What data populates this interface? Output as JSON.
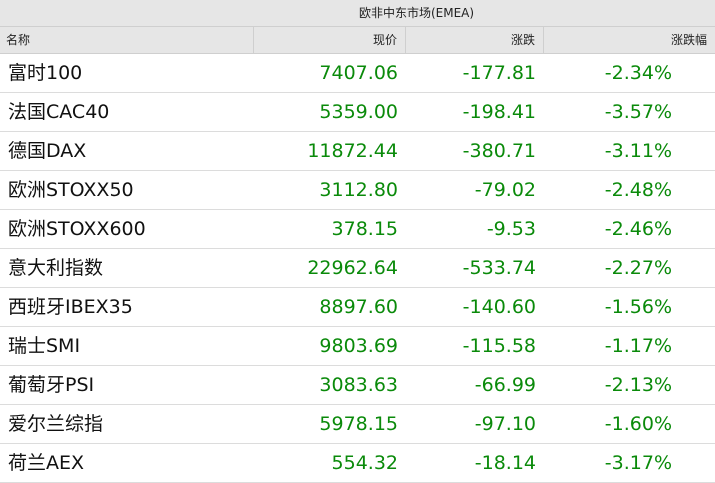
{
  "title": "欧非中东市场(EMEA)",
  "headers": {
    "name": "名称",
    "price": "现价",
    "change": "涨跌",
    "pct": "涨跌幅"
  },
  "colors": {
    "down": "#0a8a0a",
    "header_bg": "#e6e6e6"
  },
  "rows": [
    {
      "name": "富时100",
      "price": "7407.06",
      "change": "-177.81",
      "pct": "-2.34%"
    },
    {
      "name": "法国CAC40",
      "price": "5359.00",
      "change": "-198.41",
      "pct": "-3.57%"
    },
    {
      "name": "德国DAX",
      "price": "11872.44",
      "change": "-380.71",
      "pct": "-3.11%"
    },
    {
      "name": "欧洲STOXX50",
      "price": "3112.80",
      "change": "-79.02",
      "pct": "-2.48%"
    },
    {
      "name": "欧洲STOXX600",
      "price": "378.15",
      "change": "-9.53",
      "pct": "-2.46%"
    },
    {
      "name": "意大利指数",
      "price": "22962.64",
      "change": "-533.74",
      "pct": "-2.27%"
    },
    {
      "name": "西班牙IBEX35",
      "price": "8897.60",
      "change": "-140.60",
      "pct": "-1.56%"
    },
    {
      "name": "瑞士SMI",
      "price": "9803.69",
      "change": "-115.58",
      "pct": "-1.17%"
    },
    {
      "name": "葡萄牙PSI",
      "price": "3083.63",
      "change": "-66.99",
      "pct": "-2.13%"
    },
    {
      "name": "爱尔兰综指",
      "price": "5978.15",
      "change": "-97.10",
      "pct": "-1.60%"
    },
    {
      "name": "荷兰AEX",
      "price": "554.32",
      "change": "-18.14",
      "pct": "-3.17%"
    }
  ]
}
